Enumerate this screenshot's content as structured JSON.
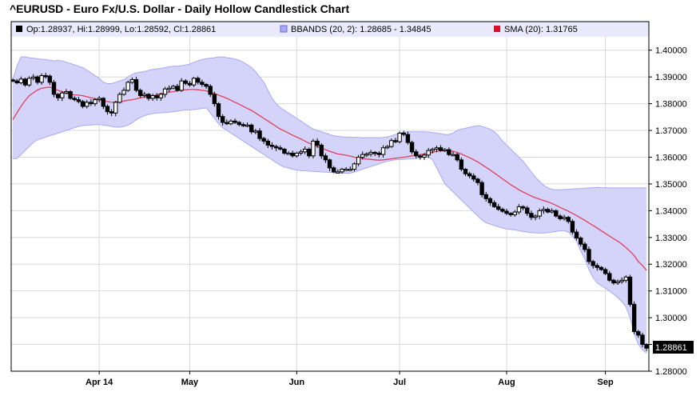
{
  "title": "^EURUSD - Euro Fx/U.S. Dollar - Daily Hollow Candlestick Chart",
  "legend": {
    "ohlc_text": "Op:1.28937, Hi:1.28999, Lo:1.28592, Cl:1.28861",
    "bbands_text": "BBANDS (20, 2): 1.28685 - 1.34845",
    "sma_text": "SMA (20): 1.31765"
  },
  "last_price_label": "1.28861",
  "colors": {
    "band_fill": "#d4d4fb",
    "band_line": "#a9a9f5",
    "sma": "#e0405a",
    "grid": "#d8d8d8",
    "candle": "#000000",
    "legend_bg": "#eaeafc"
  },
  "chart_data": {
    "type": "candlestick",
    "title": "^EURUSD - Euro Fx/U.S. Dollar - Daily Hollow Candlestick Chart",
    "ylim": [
      1.28,
      1.405
    ],
    "y_ticks": [
      "1.28000",
      "1.29000",
      "1.30000",
      "1.31000",
      "1.32000",
      "1.33000",
      "1.34000",
      "1.35000",
      "1.36000",
      "1.37000",
      "1.38000",
      "1.39000",
      "1.40000"
    ],
    "x_ticks": [
      {
        "label": "Apr 14",
        "index": 21
      },
      {
        "label": "May",
        "index": 43
      },
      {
        "label": "Jun",
        "index": 69
      },
      {
        "label": "Jul",
        "index": 94
      },
      {
        "label": "Aug",
        "index": 120
      },
      {
        "label": "Sep",
        "index": 144
      }
    ],
    "close": [
      1.3885,
      1.3878,
      1.3892,
      1.387,
      1.3895,
      1.39,
      1.388,
      1.3905,
      1.3903,
      1.388,
      1.3835,
      1.3822,
      1.384,
      1.3845,
      1.382,
      1.3815,
      1.3808,
      1.379,
      1.3805,
      1.38,
      1.3815,
      1.382,
      1.379,
      1.377,
      1.3765,
      1.3805,
      1.3835,
      1.385,
      1.388,
      1.389,
      1.385,
      1.383,
      1.3835,
      1.382,
      1.383,
      1.3822,
      1.3835,
      1.3855,
      1.3858,
      1.3865,
      1.385,
      1.3885,
      1.3876,
      1.387,
      1.3895,
      1.388,
      1.3872,
      1.3865,
      1.3835,
      1.38,
      1.3752,
      1.373,
      1.3725,
      1.3735,
      1.373,
      1.3722,
      1.372,
      1.372,
      1.3695,
      1.3698,
      1.367,
      1.366,
      1.3645,
      1.364,
      1.3635,
      1.363,
      1.3615,
      1.3615,
      1.3605,
      1.3615,
      1.362,
      1.363,
      1.3605,
      1.366,
      1.3645,
      1.3605,
      1.359,
      1.356,
      1.3545,
      1.3545,
      1.3555,
      1.3555,
      1.3555,
      1.3575,
      1.36,
      1.361,
      1.3612,
      1.3618,
      1.3615,
      1.361,
      1.3635,
      1.364,
      1.3662,
      1.3658,
      1.369,
      1.3685,
      1.3655,
      1.362,
      1.3605,
      1.36,
      1.3608,
      1.3625,
      1.363,
      1.3635,
      1.3625,
      1.3628,
      1.361,
      1.361,
      1.359,
      1.3555,
      1.3538,
      1.353,
      1.3518,
      1.3505,
      1.346,
      1.3445,
      1.343,
      1.3415,
      1.3405,
      1.3398,
      1.339,
      1.3385,
      1.3395,
      1.3415,
      1.341,
      1.339,
      1.3375,
      1.338,
      1.34,
      1.3405,
      1.3395,
      1.34,
      1.338,
      1.337,
      1.3375,
      1.336,
      1.332,
      1.3298,
      1.3275,
      1.3255,
      1.321,
      1.3195,
      1.3188,
      1.318,
      1.3165,
      1.314,
      1.313,
      1.3135,
      1.314,
      1.3152,
      1.305,
      1.2948,
      1.2935,
      1.29,
      1.2886
    ],
    "sma20": [
      1.374,
      1.3765,
      1.379,
      1.3812,
      1.383,
      1.3841,
      1.3851,
      1.3858,
      1.386,
      1.3862,
      1.3855,
      1.385,
      1.3845,
      1.384,
      1.3835,
      1.3833,
      1.3832,
      1.383,
      1.3826,
      1.3822,
      1.3818,
      1.3815,
      1.381,
      1.3808,
      1.3805,
      1.3807,
      1.3808,
      1.381,
      1.3813,
      1.3815,
      1.3818,
      1.3822,
      1.3825,
      1.3828,
      1.383,
      1.3833,
      1.3838,
      1.384,
      1.3843,
      1.3845,
      1.3848,
      1.385,
      1.3852,
      1.3853,
      1.3853,
      1.3852,
      1.385,
      1.3848,
      1.3843,
      1.3838,
      1.3832,
      1.3826,
      1.382,
      1.3813,
      1.3805,
      1.3798,
      1.379,
      1.3782,
      1.3775,
      1.3765,
      1.3755,
      1.3745,
      1.3735,
      1.3725,
      1.3715,
      1.3705,
      1.3698,
      1.369,
      1.3682,
      1.3675,
      1.3668,
      1.366,
      1.3652,
      1.3645,
      1.364,
      1.3635,
      1.3628,
      1.3622,
      1.3617,
      1.3612,
      1.361,
      1.3607,
      1.3604,
      1.36,
      1.3597,
      1.3595,
      1.3593,
      1.3592,
      1.359,
      1.3589,
      1.359,
      1.3592,
      1.3594,
      1.3596,
      1.3598,
      1.36,
      1.3602,
      1.3605,
      1.3607,
      1.361,
      1.3612,
      1.3615,
      1.3618,
      1.3622,
      1.3624,
      1.3625,
      1.3624,
      1.3622,
      1.3618,
      1.3612,
      1.3605,
      1.3598,
      1.359,
      1.3582,
      1.3572,
      1.3562,
      1.3552,
      1.3541,
      1.353,
      1.3519,
      1.3508,
      1.3497,
      1.3488,
      1.3478,
      1.347,
      1.3462,
      1.3455,
      1.3448,
      1.3443,
      1.3438,
      1.3433,
      1.3427,
      1.342,
      1.3412,
      1.3405,
      1.3398,
      1.339,
      1.3382,
      1.3373,
      1.3364,
      1.3354,
      1.3345,
      1.3335,
      1.3325,
      1.3315,
      1.3305,
      1.3295,
      1.3286,
      1.3275,
      1.3262,
      1.3248,
      1.3232,
      1.321,
      1.3195,
      1.3177
    ],
    "bb_upper": [
      1.3888,
      1.394,
      1.3975,
      1.3975,
      1.3972,
      1.397,
      1.3968,
      1.3966,
      1.3965,
      1.3962,
      1.396,
      1.3962,
      1.396,
      1.3955,
      1.395,
      1.3945,
      1.394,
      1.3935,
      1.3925,
      1.3915,
      1.3905,
      1.3895,
      1.388,
      1.3875,
      1.3875,
      1.388,
      1.3885,
      1.389,
      1.39,
      1.391,
      1.3915,
      1.3918,
      1.392,
      1.3925,
      1.3928,
      1.393,
      1.3932,
      1.3935,
      1.3938,
      1.394,
      1.394,
      1.3942,
      1.3945,
      1.3948,
      1.3955,
      1.396,
      1.3965,
      1.3968,
      1.397,
      1.3972,
      1.3975,
      1.3975,
      1.3972,
      1.397,
      1.3967,
      1.3962,
      1.3955,
      1.3945,
      1.3935,
      1.392,
      1.39,
      1.388,
      1.385,
      1.382,
      1.38,
      1.3785,
      1.3775,
      1.3765,
      1.3755,
      1.3745,
      1.3735,
      1.3725,
      1.3715,
      1.3705,
      1.37,
      1.3695,
      1.369,
      1.3685,
      1.368,
      1.3678,
      1.3676,
      1.3675,
      1.3675,
      1.3674,
      1.3674,
      1.3673,
      1.3673,
      1.3673,
      1.3673,
      1.3673,
      1.3674,
      1.3676,
      1.368,
      1.3685,
      1.369,
      1.3694,
      1.3695,
      1.3695,
      1.3695,
      1.3695,
      1.3695,
      1.3694,
      1.3692,
      1.369,
      1.3688,
      1.3685,
      1.3685,
      1.369,
      1.37,
      1.3705,
      1.3708,
      1.3712,
      1.3715,
      1.3718,
      1.3715,
      1.371,
      1.3705,
      1.3695,
      1.368,
      1.366,
      1.3645,
      1.363,
      1.3615,
      1.36,
      1.3585,
      1.3565,
      1.3545,
      1.3525,
      1.351,
      1.3495,
      1.3485,
      1.348,
      1.3478,
      1.3478,
      1.3479,
      1.348,
      1.3481,
      1.3482,
      1.3483,
      1.3484,
      1.3485,
      1.3486,
      1.3487,
      1.3486,
      1.3486,
      1.3485,
      1.3485,
      1.3485,
      1.3485,
      1.3485,
      1.3485,
      1.3485,
      1.3485,
      1.3485,
      1.3485
    ],
    "bb_lower": [
      1.3595,
      1.3595,
      1.361,
      1.3625,
      1.364,
      1.3655,
      1.3665,
      1.367,
      1.3675,
      1.368,
      1.3685,
      1.369,
      1.3695,
      1.37,
      1.3705,
      1.371,
      1.3715,
      1.3718,
      1.372,
      1.372,
      1.3722,
      1.3722,
      1.372,
      1.3718,
      1.3715,
      1.3712,
      1.3712,
      1.3715,
      1.372,
      1.3728,
      1.374,
      1.3748,
      1.3755,
      1.376,
      1.3763,
      1.3765,
      1.3766,
      1.3767,
      1.3768,
      1.377,
      1.3772,
      1.3775,
      1.3776,
      1.3777,
      1.3778,
      1.378,
      1.3782,
      1.3785,
      1.3765,
      1.3745,
      1.3725,
      1.371,
      1.37,
      1.369,
      1.368,
      1.367,
      1.366,
      1.365,
      1.364,
      1.363,
      1.362,
      1.361,
      1.36,
      1.359,
      1.358,
      1.357,
      1.3563,
      1.356,
      1.3555,
      1.3552,
      1.355,
      1.3549,
      1.3548,
      1.3547,
      1.3546,
      1.3545,
      1.3544,
      1.3543,
      1.3542,
      1.3541,
      1.354,
      1.354,
      1.354,
      1.3545,
      1.355,
      1.3555,
      1.356,
      1.3565,
      1.357,
      1.3575,
      1.358,
      1.3585,
      1.3588,
      1.359,
      1.3592,
      1.3592,
      1.3593,
      1.3594,
      1.3595,
      1.3597,
      1.36,
      1.36,
      1.359,
      1.356,
      1.353,
      1.35,
      1.3485,
      1.347,
      1.3455,
      1.344,
      1.3425,
      1.341,
      1.3395,
      1.338,
      1.3365,
      1.3355,
      1.335,
      1.3345,
      1.334,
      1.3335,
      1.3332,
      1.333,
      1.3328,
      1.3325,
      1.3322,
      1.332,
      1.3318,
      1.3317,
      1.3316,
      1.3316,
      1.3318,
      1.332,
      1.3322,
      1.3325,
      1.3325,
      1.332,
      1.3305,
      1.3285,
      1.325,
      1.322,
      1.318,
      1.315,
      1.313,
      1.312,
      1.311,
      1.31,
      1.3088,
      1.3075,
      1.306,
      1.304,
      1.3,
      1.294,
      1.29,
      1.288,
      1.2868
    ]
  }
}
